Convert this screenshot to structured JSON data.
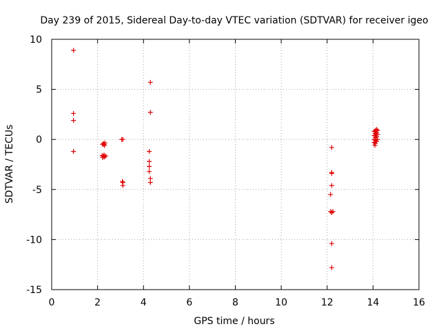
{
  "chart_data": {
    "type": "scatter",
    "title": "Day 239 of 2015, Sidereal Day-to-day VTEC variation (SDTVAR) for receiver igeo",
    "xlabel": "GPS time / hours",
    "ylabel": "SDTVAR / TECUs",
    "xlim": [
      0,
      16
    ],
    "ylim": [
      -15,
      10
    ],
    "xticks": [
      0,
      2,
      4,
      6,
      8,
      10,
      12,
      14,
      16
    ],
    "yticks": [
      -15,
      -10,
      -5,
      0,
      5,
      10
    ],
    "grid": true,
    "marker": "plus",
    "color": "#e00000",
    "series": [
      {
        "name": "SDTVAR",
        "points": [
          [
            0.95,
            8.9
          ],
          [
            0.95,
            2.6
          ],
          [
            0.95,
            1.9
          ],
          [
            0.95,
            -1.2
          ],
          [
            2.25,
            -0.4
          ],
          [
            2.28,
            -0.5
          ],
          [
            2.3,
            -0.6
          ],
          [
            2.22,
            -0.5
          ],
          [
            2.32,
            -0.35
          ],
          [
            2.2,
            -1.6
          ],
          [
            2.25,
            -1.7
          ],
          [
            2.3,
            -1.75
          ],
          [
            2.35,
            -1.65
          ],
          [
            2.22,
            -1.8
          ],
          [
            2.28,
            -1.55
          ],
          [
            3.05,
            0.0
          ],
          [
            3.1,
            0.0
          ],
          [
            3.08,
            -4.2
          ],
          [
            3.1,
            -4.3
          ],
          [
            3.1,
            -4.6
          ],
          [
            4.3,
            5.7
          ],
          [
            4.3,
            2.7
          ],
          [
            4.25,
            -1.2
          ],
          [
            4.25,
            -2.2
          ],
          [
            4.25,
            -2.7
          ],
          [
            4.25,
            -3.2
          ],
          [
            4.3,
            -3.9
          ],
          [
            4.3,
            -4.3
          ],
          [
            12.2,
            -0.8
          ],
          [
            12.2,
            -3.3
          ],
          [
            12.2,
            -3.4
          ],
          [
            12.2,
            -4.6
          ],
          [
            12.15,
            -5.5
          ],
          [
            12.15,
            -7.2
          ],
          [
            12.2,
            -7.3
          ],
          [
            12.25,
            -7.2
          ],
          [
            12.2,
            -10.4
          ],
          [
            12.2,
            -12.8
          ],
          [
            14.05,
            0.8
          ],
          [
            14.1,
            0.9
          ],
          [
            14.15,
            1.0
          ],
          [
            14.2,
            0.9
          ],
          [
            14.1,
            0.6
          ],
          [
            14.15,
            0.5
          ],
          [
            14.05,
            0.4
          ],
          [
            14.1,
            0.2
          ],
          [
            14.15,
            0.3
          ],
          [
            14.05,
            0.0
          ],
          [
            14.1,
            -0.1
          ],
          [
            14.15,
            -0.2
          ],
          [
            14.05,
            -0.3
          ],
          [
            14.1,
            -0.4
          ],
          [
            14.08,
            -0.6
          ],
          [
            14.2,
            0.0
          ],
          [
            14.15,
            0.7
          ],
          [
            14.2,
            0.5
          ]
        ]
      }
    ]
  }
}
